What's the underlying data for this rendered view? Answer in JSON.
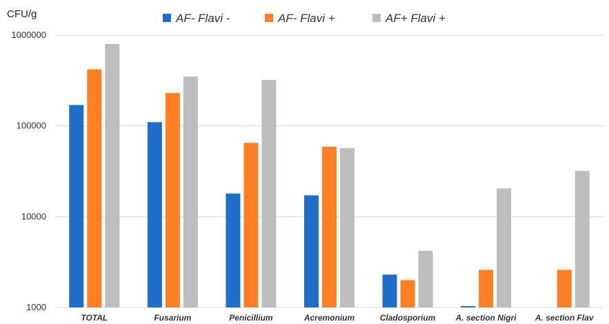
{
  "chart_data": {
    "type": "bar",
    "title": "",
    "ylabel": "CFU/g",
    "xlabel": "",
    "yscale": "log",
    "ylim": [
      1000,
      1000000
    ],
    "yticks": [
      "1000",
      "10000",
      "100000",
      "1000000"
    ],
    "grid": true,
    "legend_position": "top",
    "categories": [
      "TOTAL",
      "Fusarium",
      "Penicillium",
      "Acremonium",
      "Cladosporium",
      "A. section Nigri",
      "A. section Flav"
    ],
    "series": [
      {
        "name": "AF- Flavi -",
        "color": "#1f6fc8",
        "values": [
          170000,
          110000,
          18000,
          17200,
          2300,
          1000,
          null
        ]
      },
      {
        "name": "AF- Flavi +",
        "color": "#ff7f27",
        "values": [
          420000,
          230000,
          65000,
          59000,
          2000,
          2600,
          2600
        ]
      },
      {
        "name": "AF+ Flavi +",
        "color": "#bdbdbd",
        "values": [
          800000,
          350000,
          320000,
          57000,
          4200,
          20500,
          32000
        ]
      }
    ]
  }
}
